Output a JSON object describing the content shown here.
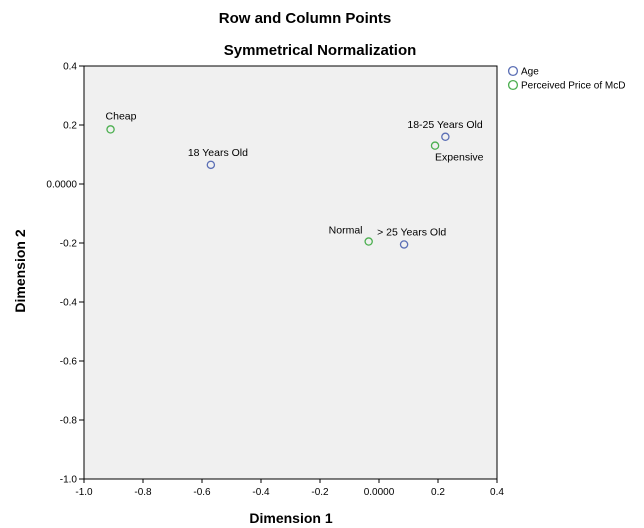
{
  "chart_data": {
    "type": "scatter",
    "title": "Row and Column Points",
    "subtitle": "Symmetrical Normalization",
    "xlabel": "Dimension 1",
    "ylabel": "Dimension 2",
    "xlim": [
      -1.0,
      0.4
    ],
    "ylim": [
      -1.0,
      0.4
    ],
    "x_ticks": [
      -1.0,
      -0.8,
      -0.6,
      -0.4,
      -0.2,
      0.0,
      0.2,
      0.4
    ],
    "y_ticks": [
      -1.0,
      -0.8,
      -0.6,
      -0.4,
      -0.2,
      0.0,
      0.2,
      0.4
    ],
    "x_tick_labels": [
      "-1.0",
      "-0.8",
      "-0.6",
      "-0.4",
      "-0.2",
      "0.0000",
      "0.2",
      "0.4"
    ],
    "y_tick_labels": [
      "-1.0",
      "-0.8",
      "-0.6",
      "-0.4",
      "-0.2",
      "0.0000",
      "0.2",
      "0.4"
    ],
    "grid": false,
    "legend_position": "right",
    "series": [
      {
        "name": "Age",
        "color": "#5b6fb5",
        "points": [
          {
            "label": "18 Years Old",
            "x": -0.57,
            "y": 0.065
          },
          {
            "label": "18-25 Years Old",
            "x": 0.225,
            "y": 0.16
          },
          {
            "label": "> 25 Years Old",
            "x": 0.085,
            "y": -0.205
          }
        ]
      },
      {
        "name": "Perceived Price of McD",
        "color": "#4caf50",
        "points": [
          {
            "label": "Cheap",
            "x": -0.91,
            "y": 0.185
          },
          {
            "label": "Expensive",
            "x": 0.19,
            "y": 0.13
          },
          {
            "label": "Normal",
            "x": -0.035,
            "y": -0.195
          }
        ]
      }
    ]
  }
}
